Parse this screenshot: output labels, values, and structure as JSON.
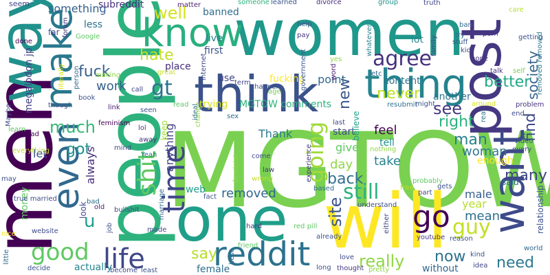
{
  "word_cloud": {
    "words": [
      {
        "text": "MGTOW",
        "color": "#7ad151"
      },
      {
        "text": "people",
        "color": "#2db27d"
      },
      {
        "text": "women",
        "color": "#1f988b"
      },
      {
        "text": "one",
        "color": "#1f9e89"
      },
      {
        "text": "will",
        "color": "#fde725"
      },
      {
        "text": "men",
        "color": "#440154"
      },
      {
        "text": "way",
        "color": "#21918c"
      },
      {
        "text": "think",
        "color": "#3b528b"
      },
      {
        "text": "post",
        "color": "#453781"
      },
      {
        "text": "want",
        "color": "#3e4a89"
      },
      {
        "text": "know",
        "color": "#29af7f"
      },
      {
        "text": "make",
        "color": "#2a788e"
      },
      {
        "text": "thing",
        "color": "#25838e"
      },
      {
        "text": "even",
        "color": "#31688e"
      },
      {
        "text": "time",
        "color": "#404688"
      },
      {
        "text": "reddit",
        "color": "#2c728e"
      },
      {
        "text": "shit",
        "color": "#5ec962"
      },
      {
        "text": "go",
        "color": "#440154"
      },
      {
        "text": "life",
        "color": "#3f4788"
      },
      {
        "text": "good",
        "color": "#5ec962"
      },
      {
        "text": "removed",
        "color": "#31688e"
      },
      {
        "text": "going",
        "color": "#a0da39"
      },
      {
        "text": "still",
        "color": "#2db27d"
      },
      {
        "text": "gt",
        "color": "#2c728e"
      },
      {
        "text": "agree",
        "color": "#46327e"
      },
      {
        "text": "hate",
        "color": "#c2df23"
      },
      {
        "text": "fuck",
        "color": "#355f8d"
      },
      {
        "text": "well",
        "color": "#d5e21a"
      },
      {
        "text": "much",
        "color": "#35b779"
      },
      {
        "text": "u",
        "color": "#1f9e89"
      },
      {
        "text": "society",
        "color": "#33638d"
      },
      {
        "text": "really",
        "color": "#8fd744"
      },
      {
        "text": "guy",
        "color": "#c2df23"
      },
      {
        "text": "need",
        "color": "#2a788e"
      },
      {
        "text": "now",
        "color": "#2c728e"
      },
      {
        "text": "see",
        "color": "#453781"
      },
      {
        "text": "right",
        "color": "#2db27d"
      },
      {
        "text": "many",
        "color": "#414487"
      },
      {
        "text": "man",
        "color": "#277f8e"
      },
      {
        "text": "find",
        "color": "#3e4a89"
      },
      {
        "text": "better",
        "color": "#22a884"
      },
      {
        "text": "got",
        "color": "#21918c"
      },
      {
        "text": "never",
        "color": "#bddf26"
      },
      {
        "text": "new",
        "color": "#39568c"
      },
      {
        "text": "site",
        "color": "#3a548c"
      },
      {
        "text": "back",
        "color": "#2e6f8e"
      },
      {
        "text": "say",
        "color": "#b5de2b"
      },
      {
        "text": "mean",
        "color": "#2d708e"
      },
      {
        "text": "woman",
        "color": "#2a788e"
      },
      {
        "text": "work",
        "color": "#34618d"
      },
      {
        "text": "something",
        "color": "#34618d"
      },
      {
        "text": "subreddit",
        "color": "#46307e"
      },
      {
        "text": "anything",
        "color": "#424186"
      },
      {
        "text": "day",
        "color": "#8fd744"
      },
      {
        "text": "take",
        "color": "#26828e"
      },
      {
        "text": "feel",
        "color": "#440154"
      },
      {
        "text": "tell",
        "color": "#21918c"
      },
      {
        "text": "give",
        "color": "#5ec962"
      },
      {
        "text": "Thank",
        "color": "#2a788e"
      },
      {
        "text": "trying",
        "color": "#d5e21a"
      },
      {
        "text": "MGTOW comments",
        "color": "#2db27d"
      },
      {
        "text": "point",
        "color": "#31688e"
      },
      {
        "text": "content",
        "color": "#2c728e"
      },
      {
        "text": "fucking",
        "color": "#fde725"
      },
      {
        "text": "first",
        "color": "#3b528b"
      },
      {
        "text": "place",
        "color": "#472c7a"
      },
      {
        "text": "year",
        "color": "#b5de2b"
      },
      {
        "text": "male",
        "color": "#355f8d"
      },
      {
        "text": "female",
        "color": "#2e6f8e"
      },
      {
        "text": "actually",
        "color": "#25848e"
      },
      {
        "text": "always",
        "color": "#472d7b"
      },
      {
        "text": "let",
        "color": "#3b528b"
      },
      {
        "text": "money",
        "color": "#5ec962"
      },
      {
        "text": "lot",
        "color": "#24878e"
      },
      {
        "text": "another",
        "color": "#2a778e"
      },
      {
        "text": "start",
        "color": "#3f4889"
      },
      {
        "text": "believe",
        "color": "#1fa088"
      },
      {
        "text": "less",
        "color": "#2c728e"
      },
      {
        "text": "banned",
        "color": "#2e6e8e"
      },
      {
        "text": "live",
        "color": "#287c8e"
      },
      {
        "text": "use",
        "color": "#404688"
      },
      {
        "text": "keep",
        "color": "#a0da39"
      },
      {
        "text": "look",
        "color": "#3e4989"
      },
      {
        "text": "web",
        "color": "#1f9e89"
      },
      {
        "text": "said",
        "color": "#2d708e"
      },
      {
        "text": "enough",
        "color": "#fde725"
      },
      {
        "text": "relationship",
        "color": "#3b528b"
      },
      {
        "text": "megalodon jp",
        "color": "#424086"
      },
      {
        "text": "seem",
        "color": "#404688"
      },
      {
        "text": "far",
        "color": "#3e4a89"
      },
      {
        "text": "forum",
        "color": "#46327e"
      },
      {
        "text": "done",
        "color": "#440154"
      },
      {
        "text": "Google",
        "color": "#5ec962"
      },
      {
        "text": "matter",
        "color": "#481b6d"
      },
      {
        "text": "someone",
        "color": "#2db27d"
      },
      {
        "text": "learned",
        "color": "#3a548c"
      },
      {
        "text": "divorce",
        "color": "#472c7a"
      },
      {
        "text": "group",
        "color": "#21918c"
      },
      {
        "text": "truth",
        "color": "#414487"
      },
      {
        "text": "ban",
        "color": "#31688e"
      },
      {
        "text": "porn",
        "color": "#46337f"
      },
      {
        "text": "care",
        "color": "#b5de2b"
      },
      {
        "text": "help",
        "color": "#3b528b"
      },
      {
        "text": "pay",
        "color": "#453781"
      },
      {
        "text": "whatever",
        "color": "#25838e"
      },
      {
        "text": "try",
        "color": "#31688e"
      },
      {
        "text": "stuff",
        "color": "#39568c"
      },
      {
        "text": "family",
        "color": "#3e4a89"
      },
      {
        "text": "getting",
        "color": "#3b528b"
      },
      {
        "text": "kid",
        "color": "#404688"
      },
      {
        "text": "hope",
        "color": "#453781"
      },
      {
        "text": "talk",
        "color": "#46327e"
      },
      {
        "text": "self",
        "color": "#7ad151"
      },
      {
        "text": "removed removed",
        "color": "#2a788e"
      },
      {
        "text": "making",
        "color": "#8fd744"
      },
      {
        "text": "great",
        "color": "#c2df23"
      },
      {
        "text": "literally",
        "color": "#d5e21a"
      },
      {
        "text": "person",
        "color": "#31688e"
      },
      {
        "text": "call",
        "color": "#404688"
      },
      {
        "text": "book",
        "color": "#3b528b"
      },
      {
        "text": "instead",
        "color": "#440154"
      },
      {
        "text": "though",
        "color": "#3e4a89"
      },
      {
        "text": "link",
        "color": "#481f70"
      },
      {
        "text": "seen",
        "color": "#3b528b"
      },
      {
        "text": "feminism",
        "color": "#440154"
      },
      {
        "text": "lol",
        "color": "#453781"
      },
      {
        "text": "away",
        "color": "#46327e"
      },
      {
        "text": "mind",
        "color": "#3e4a89"
      },
      {
        "text": "Yeah",
        "color": "#2d708e"
      },
      {
        "text": "read",
        "color": "#5ec962"
      },
      {
        "text": "ideal",
        "color": "#31688e"
      },
      {
        "text": "change",
        "color": "#8fd744"
      },
      {
        "text": "sex",
        "color": "#2d708e"
      },
      {
        "text": "term",
        "color": "#404688"
      },
      {
        "text": "internet",
        "color": "#3e4a89"
      },
      {
        "text": "happen",
        "color": "#3b528b"
      },
      {
        "text": "age",
        "color": "#7ad151"
      },
      {
        "text": "government",
        "color": "#39568c"
      },
      {
        "text": "word",
        "color": "#481b6d"
      },
      {
        "text": "yes",
        "color": "#8fd744"
      },
      {
        "text": "etc",
        "color": "#31688e"
      },
      {
        "text": "resubmit",
        "color": "#2d708e"
      },
      {
        "text": "might",
        "color": "#3b528b"
      },
      {
        "text": "problem",
        "color": "#46327e"
      },
      {
        "text": "around",
        "color": "#d5e21a"
      },
      {
        "text": "end",
        "color": "#3e4a89"
      },
      {
        "text": "real",
        "color": "#2c728e"
      },
      {
        "text": "video",
        "color": "#3b528b"
      },
      {
        "text": "every",
        "color": "#3e4a89"
      },
      {
        "text": "last",
        "color": "#414487"
      },
      {
        "text": "nothing",
        "color": "#8fd744"
      },
      {
        "text": "experience",
        "color": "#453781"
      },
      {
        "text": "probably",
        "color": "#5ec962"
      },
      {
        "text": "part",
        "color": "#3e4a89"
      },
      {
        "text": "gets",
        "color": "#3b528b"
      },
      {
        "text": "free",
        "color": "#c2df23"
      },
      {
        "text": "based",
        "color": "#31688e"
      },
      {
        "text": "understand",
        "color": "#3e4a89"
      },
      {
        "text": "reason",
        "color": "#3b528b"
      },
      {
        "text": "youtube",
        "color": "#453781"
      },
      {
        "text": "world",
        "color": "#31688e"
      },
      {
        "text": "either",
        "color": "#404688"
      },
      {
        "text": "already",
        "color": "#3b528b"
      },
      {
        "text": "red pill",
        "color": "#5ec962"
      },
      {
        "text": "wrong",
        "color": "#c2df23"
      },
      {
        "text": "come",
        "color": "#3e4a89"
      },
      {
        "text": "law",
        "color": "#453781"
      },
      {
        "text": "feminist",
        "color": "#8fd744"
      },
      {
        "text": "fact",
        "color": "#3b528b"
      },
      {
        "text": "bad",
        "color": "#2c728e"
      },
      {
        "text": "old",
        "color": "#481f70"
      },
      {
        "text": "bullshit",
        "color": "#3e4a89"
      },
      {
        "text": "marriage",
        "color": "#31688e"
      },
      {
        "text": "job",
        "color": "#3b528b"
      },
      {
        "text": "made",
        "color": "#404688"
      },
      {
        "text": "become",
        "color": "#3e4a89"
      },
      {
        "text": "least",
        "color": "#3b528b"
      },
      {
        "text": "hard",
        "color": "#453781"
      },
      {
        "text": "friend",
        "color": "#5ec962"
      },
      {
        "text": "best",
        "color": "#31688e"
      },
      {
        "text": "love",
        "color": "#3e4a89"
      },
      {
        "text": "long",
        "color": "#3b528b"
      },
      {
        "text": "thought",
        "color": "#453781"
      },
      {
        "text": "pretty",
        "color": "#8fd744"
      },
      {
        "text": "kind",
        "color": "#3b528b"
      },
      {
        "text": "idea",
        "color": "#404688"
      },
      {
        "text": "without",
        "color": "#31688e"
      },
      {
        "text": "website",
        "color": "#3e4a89"
      },
      {
        "text": "decide",
        "color": "#3b528b"
      },
      {
        "text": "true married",
        "color": "#3e4a89"
      },
      {
        "text": "nice",
        "color": "#fde725"
      },
      {
        "text": "little",
        "color": "#31688e"
      },
      {
        "text": "may",
        "color": "#3b528b"
      },
      {
        "text": "Maybe",
        "color": "#3e4a89"
      },
      {
        "text": "learn",
        "color": "#5ec962"
      },
      {
        "text": "everything",
        "color": "#c2df23"
      }
    ]
  }
}
